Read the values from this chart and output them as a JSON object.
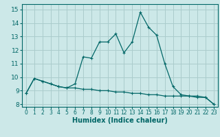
{
  "xlabel": "Humidex (Indice chaleur)",
  "background_color": "#cce8e8",
  "grid_color": "#aacccc",
  "line_color": "#006666",
  "xlim": [
    -0.5,
    23.5
  ],
  "ylim": [
    7.8,
    15.4
  ],
  "xticks": [
    0,
    1,
    2,
    3,
    4,
    5,
    6,
    7,
    8,
    9,
    10,
    11,
    12,
    13,
    14,
    15,
    16,
    17,
    18,
    19,
    20,
    21,
    22,
    23
  ],
  "yticks": [
    8,
    9,
    10,
    11,
    12,
    13,
    14,
    15
  ],
  "line1_x": [
    0,
    1,
    2,
    3,
    4,
    5,
    6,
    7,
    8,
    9,
    10,
    11,
    12,
    13,
    14,
    15,
    16,
    17,
    18,
    19,
    20,
    21,
    22,
    23
  ],
  "line1_y": [
    8.8,
    9.9,
    9.7,
    9.5,
    9.3,
    9.2,
    9.5,
    11.5,
    11.4,
    12.6,
    12.6,
    13.2,
    11.8,
    12.6,
    14.8,
    13.7,
    13.1,
    11.0,
    9.3,
    8.7,
    8.6,
    8.6,
    8.5,
    8.0
  ],
  "line2_x": [
    0,
    1,
    2,
    3,
    4,
    5,
    6,
    7,
    8,
    9,
    10,
    11,
    12,
    13,
    14,
    15,
    16,
    17,
    18,
    19,
    20,
    21,
    22,
    23
  ],
  "line2_y": [
    8.8,
    9.9,
    9.7,
    9.5,
    9.3,
    9.2,
    9.2,
    9.1,
    9.1,
    9.0,
    9.0,
    8.9,
    8.9,
    8.8,
    8.8,
    8.7,
    8.7,
    8.6,
    8.6,
    8.6,
    8.6,
    8.5,
    8.5,
    8.0
  ],
  "xtick_fontsize": 5.5,
  "ytick_fontsize": 6.5,
  "xlabel_fontsize": 7
}
